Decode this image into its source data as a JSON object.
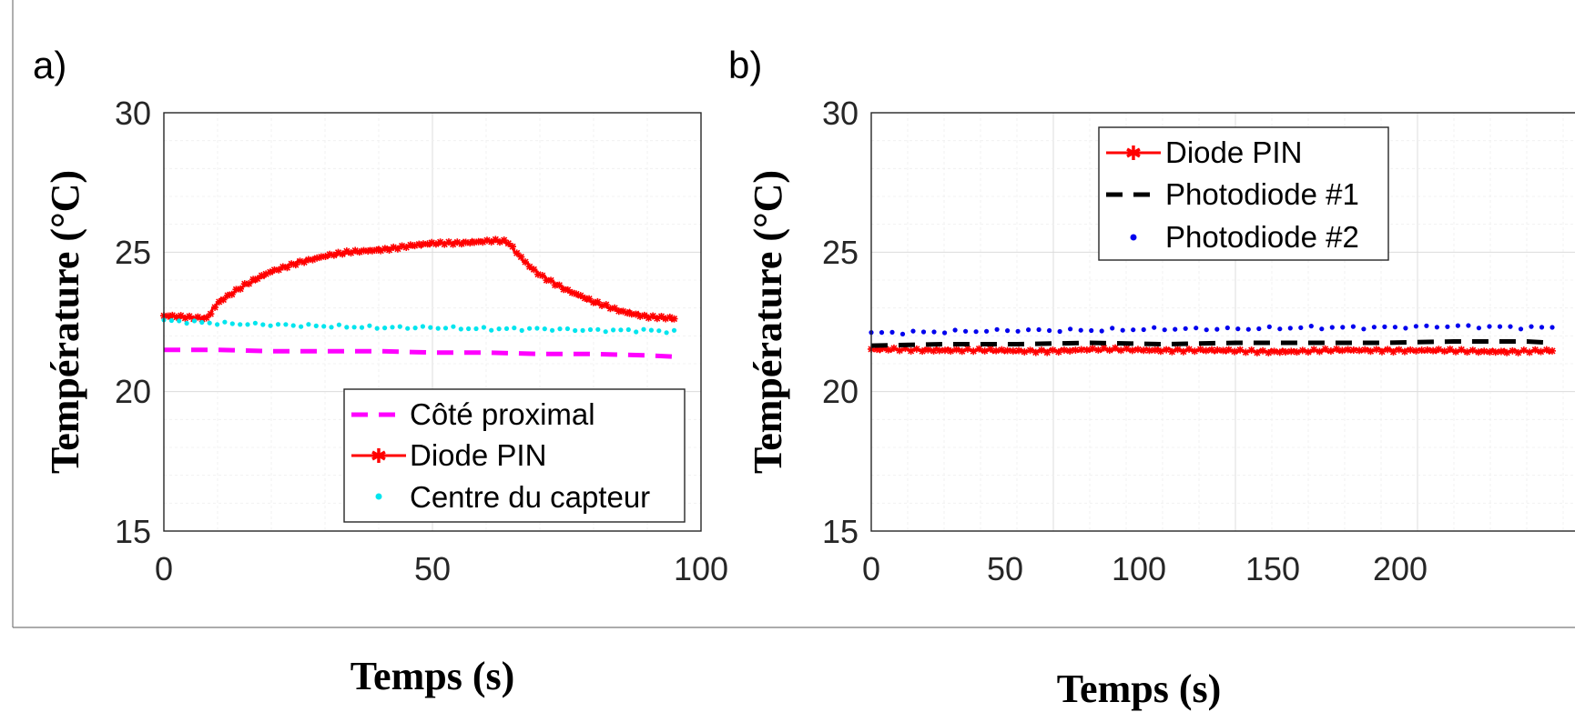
{
  "panels": {
    "a": {
      "tag": "a)",
      "xlabel": "Temps (s)",
      "ylabel": "Température (°C)",
      "xticks": [
        "0",
        "50",
        "100"
      ],
      "yticks": [
        "15",
        "20",
        "25",
        "30"
      ],
      "legend": [
        "Côté proximal",
        "Diode PIN",
        "Centre du capteur"
      ]
    },
    "b": {
      "tag": "b)",
      "xlabel": "Temps (s)",
      "ylabel": "Température (°C)",
      "xticks": [
        "0",
        "50",
        "100",
        "150",
        "200"
      ],
      "yticks": [
        "15",
        "20",
        "25",
        "30"
      ],
      "legend": [
        "Diode PIN",
        "Photodiode #1",
        "Photodiode #2"
      ]
    }
  },
  "chart_data": [
    {
      "type": "line",
      "xlabel": "Temps (s)",
      "ylabel": "Température (°C)",
      "xlim": [
        0,
        100
      ],
      "ylim": [
        15,
        30
      ],
      "grid": true,
      "legend_position": "bottom-right",
      "series": [
        {
          "name": "Côté proximal",
          "color": "#ff00ff",
          "style": "dashed",
          "x": [
            0,
            10,
            20,
            30,
            40,
            50,
            60,
            70,
            80,
            90,
            95
          ],
          "y": [
            21.5,
            21.5,
            21.45,
            21.45,
            21.45,
            21.4,
            21.4,
            21.35,
            21.35,
            21.3,
            21.25
          ]
        },
        {
          "name": "Diode PIN",
          "color": "#ff0000",
          "style": "line-star",
          "x": [
            0,
            5,
            8,
            9,
            10,
            12,
            15,
            20,
            25,
            30,
            35,
            40,
            45,
            50,
            55,
            60,
            62,
            64,
            66,
            68,
            70,
            75,
            80,
            85,
            90,
            95
          ],
          "y": [
            22.7,
            22.65,
            22.65,
            22.9,
            23.2,
            23.45,
            23.8,
            24.3,
            24.65,
            24.85,
            25.0,
            25.1,
            25.2,
            25.3,
            25.35,
            25.4,
            25.4,
            25.35,
            24.9,
            24.5,
            24.2,
            23.65,
            23.2,
            22.9,
            22.7,
            22.6
          ]
        },
        {
          "name": "Centre du capteur",
          "color": "#00e5ee",
          "style": "dots",
          "x": [
            0,
            10,
            20,
            30,
            40,
            50,
            60,
            70,
            80,
            90,
            95
          ],
          "y": [
            22.55,
            22.45,
            22.4,
            22.35,
            22.3,
            22.3,
            22.25,
            22.25,
            22.2,
            22.2,
            22.15
          ]
        }
      ]
    },
    {
      "type": "line",
      "xlabel": "Temps (s)",
      "ylabel": "Température (°C)",
      "xlim": [
        0,
        200
      ],
      "ylim": [
        15,
        30
      ],
      "grid": true,
      "legend_position": "top-right",
      "series": [
        {
          "name": "Diode PIN",
          "color": "#ff0000",
          "style": "line-star",
          "x": [
            0,
            20,
            40,
            60,
            80,
            100,
            120,
            140,
            160,
            180,
            187
          ],
          "y": [
            21.5,
            21.5,
            21.45,
            21.5,
            21.5,
            21.45,
            21.45,
            21.5,
            21.45,
            21.45,
            21.45
          ]
        },
        {
          "name": "Photodiode #1",
          "color": "#000000",
          "style": "dashed",
          "x": [
            0,
            20,
            40,
            60,
            80,
            100,
            120,
            140,
            160,
            180,
            187
          ],
          "y": [
            21.65,
            21.7,
            21.7,
            21.75,
            21.7,
            21.75,
            21.75,
            21.75,
            21.8,
            21.8,
            21.75
          ]
        },
        {
          "name": "Photodiode #2",
          "color": "#0000ee",
          "style": "dots",
          "x": [
            0,
            20,
            40,
            60,
            80,
            100,
            120,
            140,
            160,
            180,
            187
          ],
          "y": [
            22.1,
            22.15,
            22.2,
            22.2,
            22.25,
            22.25,
            22.3,
            22.3,
            22.35,
            22.3,
            22.3
          ]
        }
      ]
    }
  ]
}
